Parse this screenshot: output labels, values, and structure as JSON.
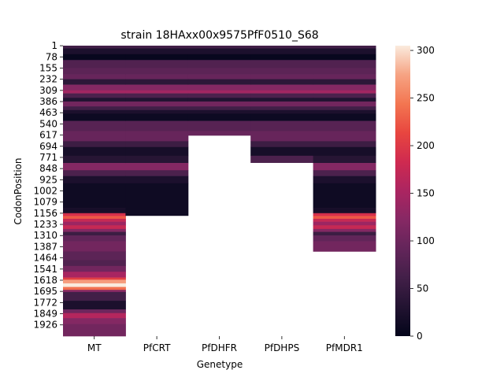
{
  "chart_data": {
    "type": "heatmap",
    "title": "strain 18HAxx00x9575PfF0510_S68",
    "xlabel": "Genetype",
    "ylabel": "CodonPosition",
    "x_categories": [
      "MT",
      "PfCRT",
      "PfDHFR",
      "PfDHPS",
      "PfMDR1"
    ],
    "y_tick_labels": [
      "1",
      "78",
      "155",
      "232",
      "309",
      "386",
      "463",
      "540",
      "617",
      "694",
      "771",
      "848",
      "925",
      "1002",
      "1079",
      "1156",
      "1233",
      "1310",
      "1387",
      "1464",
      "1541",
      "1618",
      "1695",
      "1772",
      "1849",
      "1926"
    ],
    "y_tick_step": 77,
    "n_positions": 2003,
    "colorbar": {
      "colormap": "rocket",
      "vmin": 0,
      "vmax": 305,
      "ticks": [
        "0",
        "50",
        "100",
        "150",
        "200",
        "250",
        "300"
      ]
    },
    "gene_lengths": {
      "MT": 2003,
      "PfCRT": 1172,
      "PfDHFR": 619,
      "PfDHPS": 807,
      "PfMDR1": 1419
    },
    "series": [
      {
        "name": "MT",
        "segments": [
          {
            "start": 1,
            "value": 60
          },
          {
            "start": 20,
            "value": 25
          },
          {
            "start": 60,
            "value": 5
          },
          {
            "start": 100,
            "value": 75
          },
          {
            "start": 155,
            "value": 85
          },
          {
            "start": 200,
            "value": 95
          },
          {
            "start": 232,
            "value": 40
          },
          {
            "start": 270,
            "value": 120
          },
          {
            "start": 309,
            "value": 145
          },
          {
            "start": 330,
            "value": 70
          },
          {
            "start": 360,
            "value": 30
          },
          {
            "start": 386,
            "value": 105
          },
          {
            "start": 420,
            "value": 60
          },
          {
            "start": 445,
            "value": 25
          },
          {
            "start": 470,
            "value": 10
          },
          {
            "start": 520,
            "value": 80
          },
          {
            "start": 590,
            "value": 95
          },
          {
            "start": 660,
            "value": 55
          },
          {
            "start": 700,
            "value": 20
          },
          {
            "start": 760,
            "value": 35
          },
          {
            "start": 810,
            "value": 120
          },
          {
            "start": 860,
            "value": 70
          },
          {
            "start": 900,
            "value": 25
          },
          {
            "start": 950,
            "value": 12
          },
          {
            "start": 1120,
            "value": 20
          },
          {
            "start": 1156,
            "value": 190
          },
          {
            "start": 1175,
            "value": 225
          },
          {
            "start": 1195,
            "value": 175
          },
          {
            "start": 1215,
            "value": 140
          },
          {
            "start": 1240,
            "value": 175
          },
          {
            "start": 1265,
            "value": 120
          },
          {
            "start": 1285,
            "value": 55
          },
          {
            "start": 1310,
            "value": 90
          },
          {
            "start": 1350,
            "value": 105
          },
          {
            "start": 1420,
            "value": 85
          },
          {
            "start": 1480,
            "value": 75
          },
          {
            "start": 1520,
            "value": 105
          },
          {
            "start": 1560,
            "value": 150
          },
          {
            "start": 1600,
            "value": 205
          },
          {
            "start": 1615,
            "value": 270
          },
          {
            "start": 1640,
            "value": 305
          },
          {
            "start": 1665,
            "value": 240
          },
          {
            "start": 1685,
            "value": 120
          },
          {
            "start": 1700,
            "value": 60
          },
          {
            "start": 1760,
            "value": 25
          },
          {
            "start": 1820,
            "value": 100
          },
          {
            "start": 1845,
            "value": 160
          },
          {
            "start": 1880,
            "value": 120
          },
          {
            "start": 1920,
            "value": 105
          }
        ]
      },
      {
        "name": "PfCRT",
        "segments": [
          {
            "start": 1,
            "value": 60
          },
          {
            "start": 20,
            "value": 25
          },
          {
            "start": 60,
            "value": 5
          },
          {
            "start": 100,
            "value": 75
          },
          {
            "start": 155,
            "value": 85
          },
          {
            "start": 200,
            "value": 95
          },
          {
            "start": 232,
            "value": 40
          },
          {
            "start": 270,
            "value": 120
          },
          {
            "start": 309,
            "value": 145
          },
          {
            "start": 330,
            "value": 70
          },
          {
            "start": 360,
            "value": 30
          },
          {
            "start": 386,
            "value": 105
          },
          {
            "start": 420,
            "value": 60
          },
          {
            "start": 445,
            "value": 25
          },
          {
            "start": 470,
            "value": 10
          },
          {
            "start": 520,
            "value": 80
          },
          {
            "start": 590,
            "value": 95
          },
          {
            "start": 660,
            "value": 55
          },
          {
            "start": 700,
            "value": 20
          },
          {
            "start": 760,
            "value": 35
          },
          {
            "start": 810,
            "value": 120
          },
          {
            "start": 860,
            "value": 70
          },
          {
            "start": 900,
            "value": 25
          },
          {
            "start": 950,
            "value": 12
          }
        ]
      },
      {
        "name": "PfDHFR",
        "segments": [
          {
            "start": 1,
            "value": 60
          },
          {
            "start": 20,
            "value": 25
          },
          {
            "start": 60,
            "value": 5
          },
          {
            "start": 100,
            "value": 75
          },
          {
            "start": 155,
            "value": 85
          },
          {
            "start": 200,
            "value": 95
          },
          {
            "start": 232,
            "value": 40
          },
          {
            "start": 270,
            "value": 120
          },
          {
            "start": 309,
            "value": 145
          },
          {
            "start": 330,
            "value": 70
          },
          {
            "start": 360,
            "value": 30
          },
          {
            "start": 386,
            "value": 105
          },
          {
            "start": 420,
            "value": 60
          },
          {
            "start": 445,
            "value": 25
          },
          {
            "start": 470,
            "value": 10
          },
          {
            "start": 520,
            "value": 80
          },
          {
            "start": 590,
            "value": 95
          }
        ]
      },
      {
        "name": "PfDHPS",
        "segments": [
          {
            "start": 1,
            "value": 60
          },
          {
            "start": 20,
            "value": 25
          },
          {
            "start": 60,
            "value": 5
          },
          {
            "start": 100,
            "value": 75
          },
          {
            "start": 155,
            "value": 85
          },
          {
            "start": 200,
            "value": 95
          },
          {
            "start": 232,
            "value": 40
          },
          {
            "start": 270,
            "value": 120
          },
          {
            "start": 309,
            "value": 145
          },
          {
            "start": 330,
            "value": 70
          },
          {
            "start": 360,
            "value": 30
          },
          {
            "start": 386,
            "value": 105
          },
          {
            "start": 420,
            "value": 60
          },
          {
            "start": 445,
            "value": 25
          },
          {
            "start": 470,
            "value": 10
          },
          {
            "start": 520,
            "value": 80
          },
          {
            "start": 590,
            "value": 95
          },
          {
            "start": 660,
            "value": 55
          },
          {
            "start": 700,
            "value": 20
          },
          {
            "start": 760,
            "value": 70
          }
        ]
      },
      {
        "name": "PfMDR1",
        "segments": [
          {
            "start": 1,
            "value": 60
          },
          {
            "start": 20,
            "value": 25
          },
          {
            "start": 60,
            "value": 5
          },
          {
            "start": 100,
            "value": 75
          },
          {
            "start": 155,
            "value": 85
          },
          {
            "start": 200,
            "value": 95
          },
          {
            "start": 232,
            "value": 40
          },
          {
            "start": 270,
            "value": 120
          },
          {
            "start": 309,
            "value": 145
          },
          {
            "start": 330,
            "value": 70
          },
          {
            "start": 360,
            "value": 30
          },
          {
            "start": 386,
            "value": 105
          },
          {
            "start": 420,
            "value": 60
          },
          {
            "start": 445,
            "value": 25
          },
          {
            "start": 470,
            "value": 10
          },
          {
            "start": 520,
            "value": 80
          },
          {
            "start": 590,
            "value": 95
          },
          {
            "start": 660,
            "value": 55
          },
          {
            "start": 700,
            "value": 20
          },
          {
            "start": 760,
            "value": 35
          },
          {
            "start": 810,
            "value": 120
          },
          {
            "start": 860,
            "value": 70
          },
          {
            "start": 900,
            "value": 25
          },
          {
            "start": 950,
            "value": 12
          },
          {
            "start": 1120,
            "value": 20
          },
          {
            "start": 1156,
            "value": 190
          },
          {
            "start": 1175,
            "value": 225
          },
          {
            "start": 1195,
            "value": 175
          },
          {
            "start": 1215,
            "value": 140
          },
          {
            "start": 1240,
            "value": 175
          },
          {
            "start": 1265,
            "value": 120
          },
          {
            "start": 1285,
            "value": 55
          },
          {
            "start": 1310,
            "value": 90
          },
          {
            "start": 1350,
            "value": 105
          }
        ]
      }
    ]
  }
}
